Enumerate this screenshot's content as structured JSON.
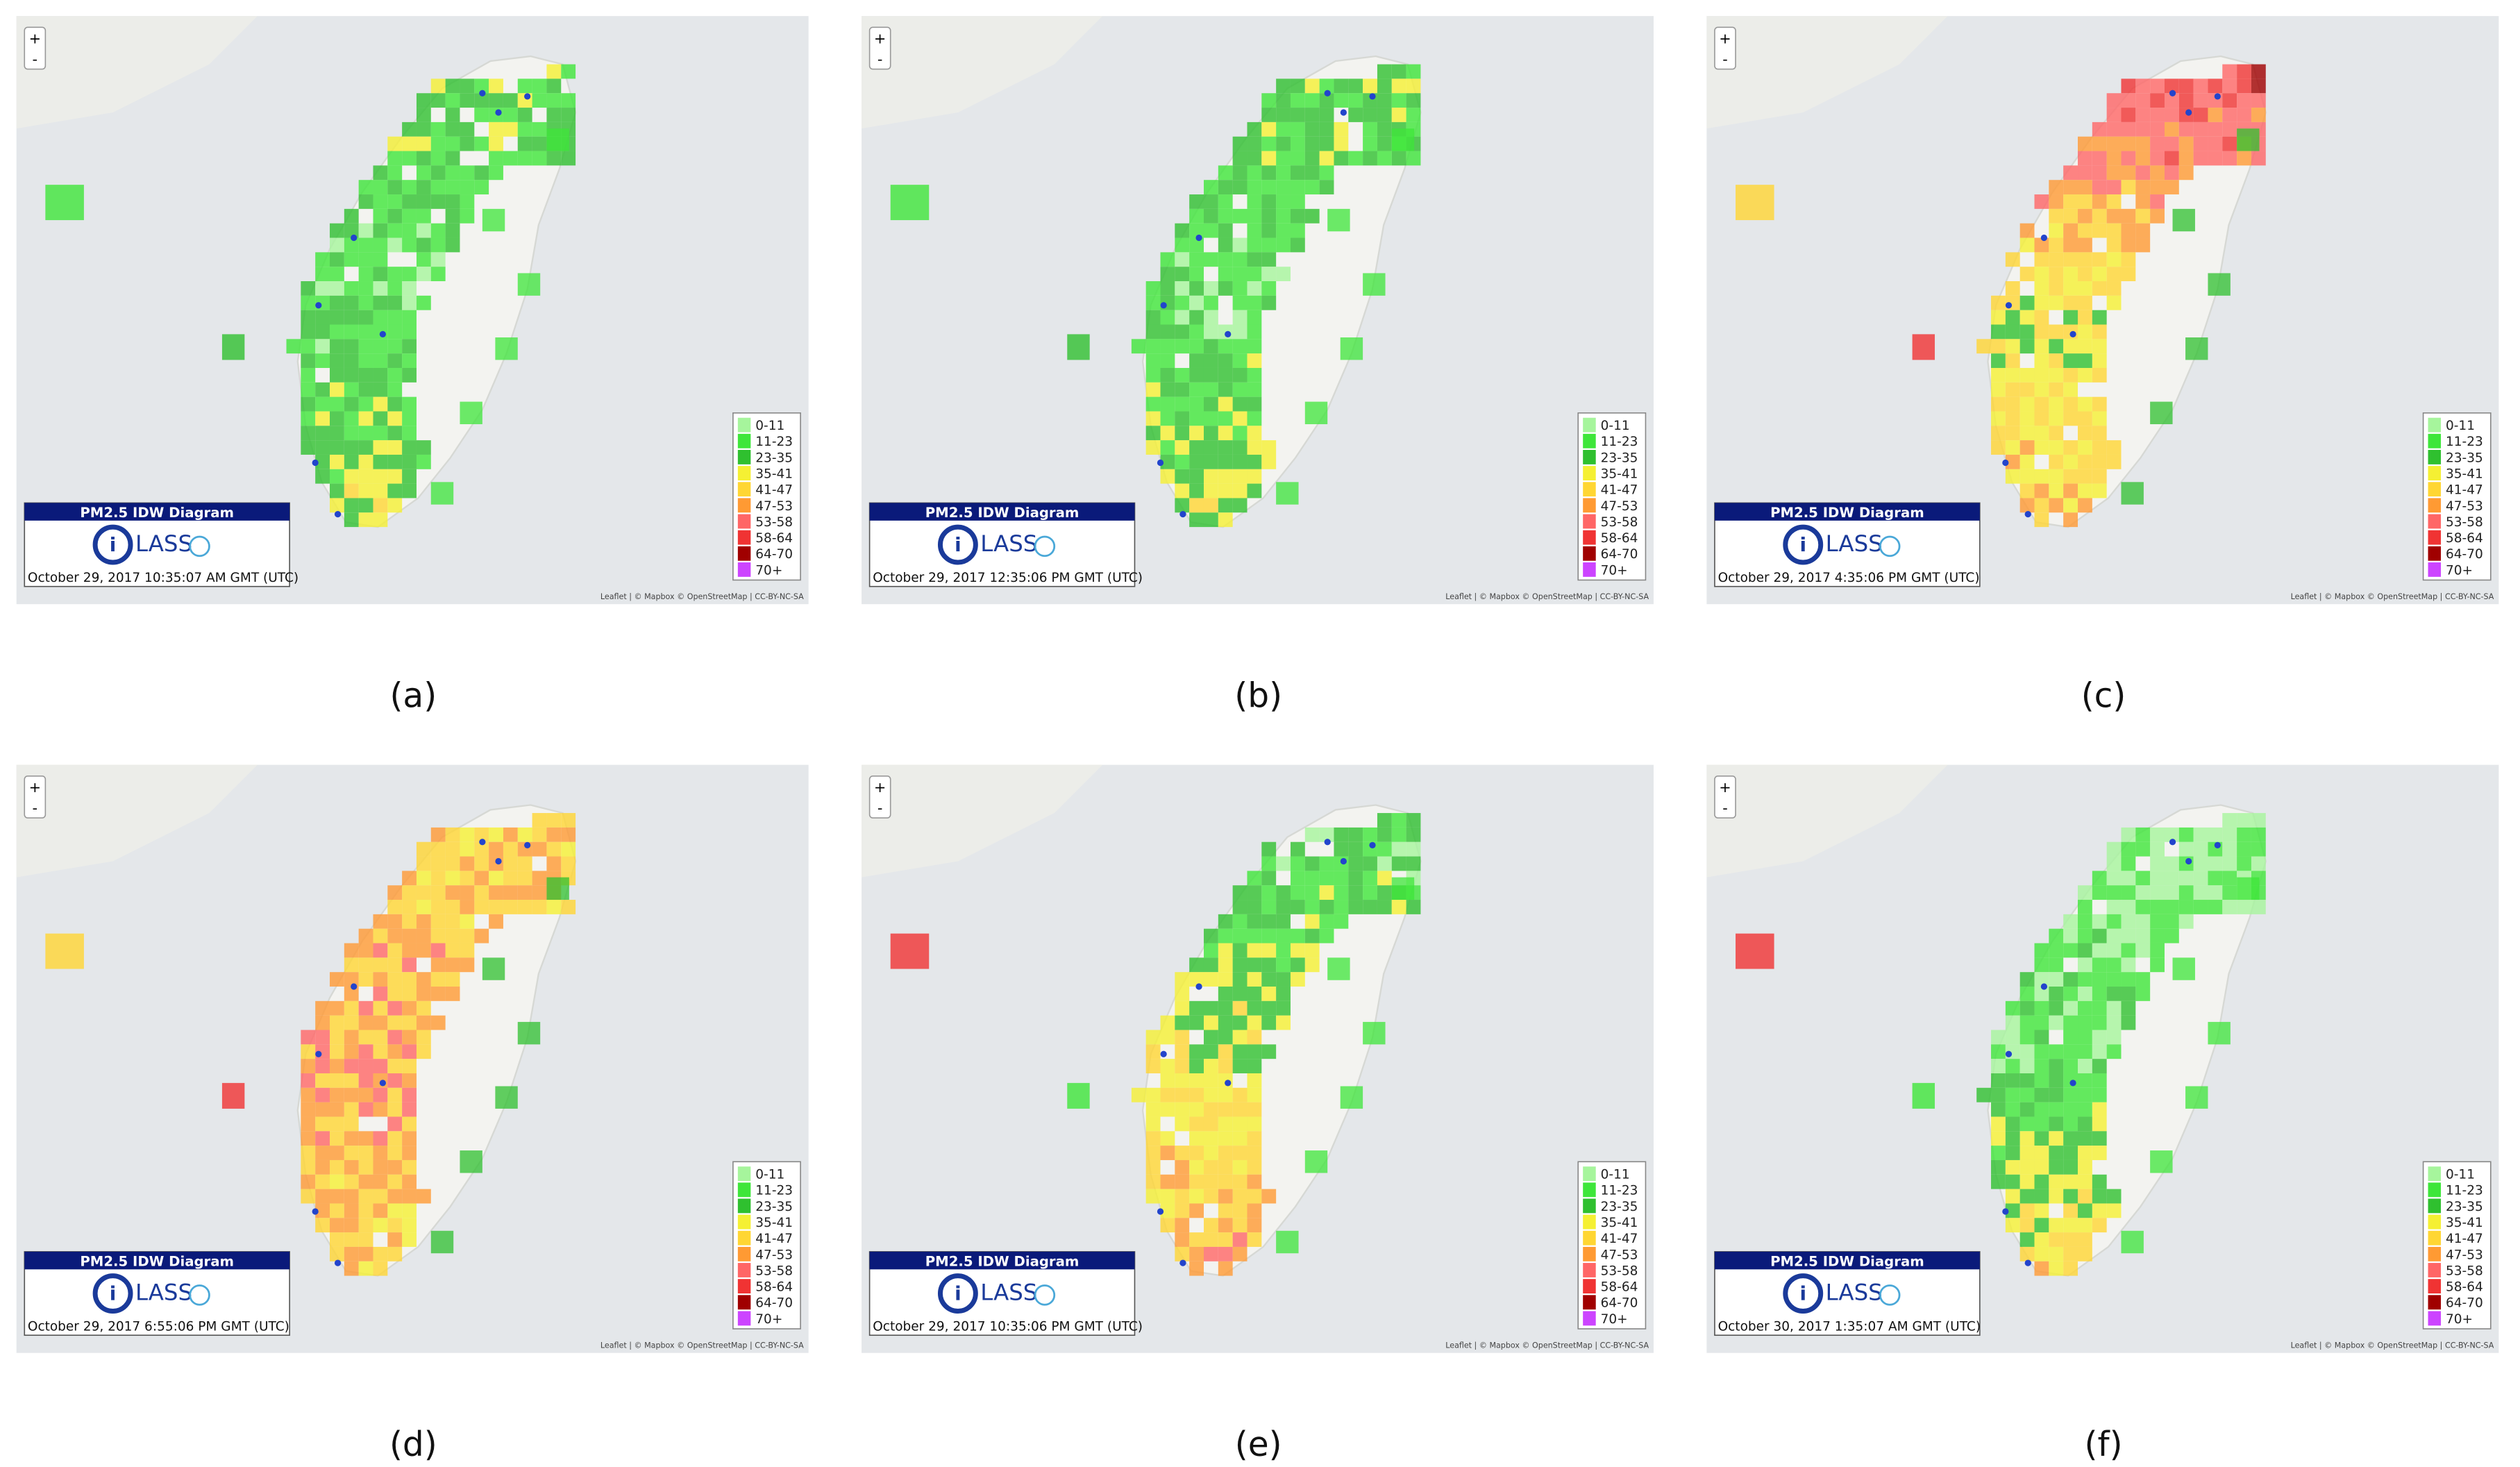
{
  "panels": [
    {
      "label": "(a)",
      "timestamp": "October 29, 2017 10:35:07 AM GMT (UTC)"
    },
    {
      "label": "(b)",
      "timestamp": "October 29, 2017 12:35:06 PM GMT (UTC)"
    },
    {
      "label": "(c)",
      "timestamp": "October 29, 2017 4:35:06 PM GMT (UTC)"
    },
    {
      "label": "(d)",
      "timestamp": "October 29, 2017 6:55:06 PM GMT (UTC)"
    },
    {
      "label": "(e)",
      "timestamp": "October 29, 2017 10:35:06 PM GMT (UTC)"
    },
    {
      "label": "(f)",
      "timestamp": "October 30, 2017 1:35:07 AM GMT (UTC)"
    }
  ],
  "diagram_title": "PM2.5 IDW Diagram",
  "logo_text": "LASS",
  "zoom_in": "+",
  "zoom_out": "-",
  "attribution": "Leaflet | © Mapbox © OpenStreetMap | CC-BY-NC-SA",
  "legend": [
    {
      "label": "0-11",
      "color": "#a6f59c"
    },
    {
      "label": "11-23",
      "color": "#3ee63a"
    },
    {
      "label": "23-35",
      "color": "#2fc02f"
    },
    {
      "label": "35-41",
      "color": "#f5f033"
    },
    {
      "label": "41-47",
      "color": "#ffd633"
    },
    {
      "label": "47-53",
      "color": "#ff9a33"
    },
    {
      "label": "53-58",
      "color": "#ff6666"
    },
    {
      "label": "58-64",
      "color": "#f03333"
    },
    {
      "label": "64-70",
      "color": "#a00000"
    },
    {
      "label": "70+",
      "color": "#cc44ff"
    }
  ]
}
